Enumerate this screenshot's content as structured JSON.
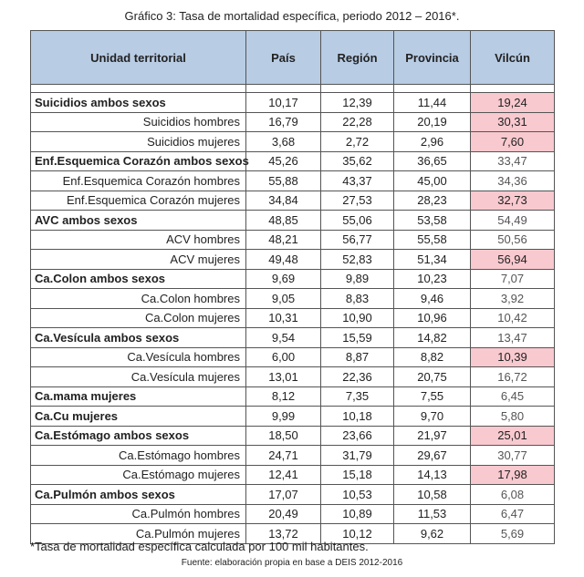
{
  "title": "Gráfico 3: Tasa de mortalidad específica, periodo 2012 – 2016*.",
  "headers": [
    "Unidad territorial",
    "País",
    "Región",
    "Provincia",
    "Vilcún"
  ],
  "rows": [
    {
      "label": "Suicidios ambos sexos",
      "main": true,
      "pais": "10,17",
      "region": "12,39",
      "provincia": "11,44",
      "vilcun": "19,24",
      "hl": true
    },
    {
      "label": "Suicidios hombres",
      "main": false,
      "pais": "16,79",
      "region": "22,28",
      "provincia": "20,19",
      "vilcun": "30,31",
      "hl": true
    },
    {
      "label": "Suicidios mujeres",
      "main": false,
      "pais": "3,68",
      "region": "2,72",
      "provincia": "2,96",
      "vilcun": "7,60",
      "hl": true
    },
    {
      "label": "Enf.Esquemica Corazón ambos sexos",
      "main": true,
      "pais": "45,26",
      "region": "35,62",
      "provincia": "36,65",
      "vilcun": "33,47",
      "hl": false
    },
    {
      "label": "Enf.Esquemica Corazón hombres",
      "main": false,
      "pais": "55,88",
      "region": "43,37",
      "provincia": "45,00",
      "vilcun": "34,36",
      "hl": false
    },
    {
      "label": "Enf.Esquemica Corazón mujeres",
      "main": false,
      "pais": "34,84",
      "region": "27,53",
      "provincia": "28,23",
      "vilcun": "32,73",
      "hl": true
    },
    {
      "label": "AVC ambos sexos",
      "main": true,
      "pais": "48,85",
      "region": "55,06",
      "provincia": "53,58",
      "vilcun": "54,49",
      "hl": false
    },
    {
      "label": "ACV hombres",
      "main": false,
      "pais": "48,21",
      "region": "56,77",
      "provincia": "55,58",
      "vilcun": "50,56",
      "hl": false
    },
    {
      "label": "ACV mujeres",
      "main": false,
      "pais": "49,48",
      "region": "52,83",
      "provincia": "51,34",
      "vilcun": "56,94",
      "hl": true
    },
    {
      "label": "Ca.Colon ambos sexos",
      "main": true,
      "pais": "9,69",
      "region": "9,89",
      "provincia": "10,23",
      "vilcun": "7,07",
      "hl": false
    },
    {
      "label": "Ca.Colon hombres",
      "main": false,
      "pais": "9,05",
      "region": "8,83",
      "provincia": "9,46",
      "vilcun": "3,92",
      "hl": false
    },
    {
      "label": "Ca.Colon mujeres",
      "main": false,
      "pais": "10,31",
      "region": "10,90",
      "provincia": "10,96",
      "vilcun": "10,42",
      "hl": false
    },
    {
      "label": "Ca.Vesícula ambos sexos",
      "main": true,
      "pais": "9,54",
      "region": "15,59",
      "provincia": "14,82",
      "vilcun": "13,47",
      "hl": false
    },
    {
      "label": "Ca.Vesícula hombres",
      "main": false,
      "pais": "6,00",
      "region": "8,87",
      "provincia": "8,82",
      "vilcun": "10,39",
      "hl": true
    },
    {
      "label": "Ca.Vesícula mujeres",
      "main": false,
      "pais": "13,01",
      "region": "22,36",
      "provincia": "20,75",
      "vilcun": "16,72",
      "hl": false
    },
    {
      "label": "Ca.mama mujeres",
      "main": true,
      "pais": "8,12",
      "region": "7,35",
      "provincia": "7,55",
      "vilcun": "6,45",
      "hl": false
    },
    {
      "label": "Ca.Cu mujeres",
      "main": true,
      "pais": "9,99",
      "region": "10,18",
      "provincia": "9,70",
      "vilcun": "5,80",
      "hl": false
    },
    {
      "label": "Ca.Estómago ambos sexos",
      "main": true,
      "pais": "18,50",
      "region": "23,66",
      "provincia": "21,97",
      "vilcun": "25,01",
      "hl": true
    },
    {
      "label": "Ca.Estómago hombres",
      "main": false,
      "pais": "24,71",
      "region": "31,79",
      "provincia": "29,67",
      "vilcun": "30,77",
      "hl": false
    },
    {
      "label": "Ca.Estómago mujeres",
      "main": false,
      "pais": "12,41",
      "region": "15,18",
      "provincia": "14,13",
      "vilcun": "17,98",
      "hl": true
    },
    {
      "label": "Ca.Pulmón ambos sexos",
      "main": true,
      "pais": "17,07",
      "region": "10,53",
      "provincia": "10,58",
      "vilcun": "6,08",
      "hl": false
    },
    {
      "label": "Ca.Pulmón hombres",
      "main": false,
      "pais": "20,49",
      "region": "10,89",
      "provincia": "11,53",
      "vilcun": "6,47",
      "hl": false
    },
    {
      "label": "Ca.Pulmón mujeres",
      "main": false,
      "pais": "13,72",
      "region": "10,12",
      "provincia": "9,62",
      "vilcun": "5,69",
      "hl": false
    }
  ],
  "colors": {
    "header_bg": "#b8cce4",
    "highlight_bg": "#f8c9cf"
  },
  "note": "*Tasa de mortalidad específica calculada por 100 mil habitantes.",
  "source": "Fuente: elaboración propia en base a DEIS 2012-2016"
}
